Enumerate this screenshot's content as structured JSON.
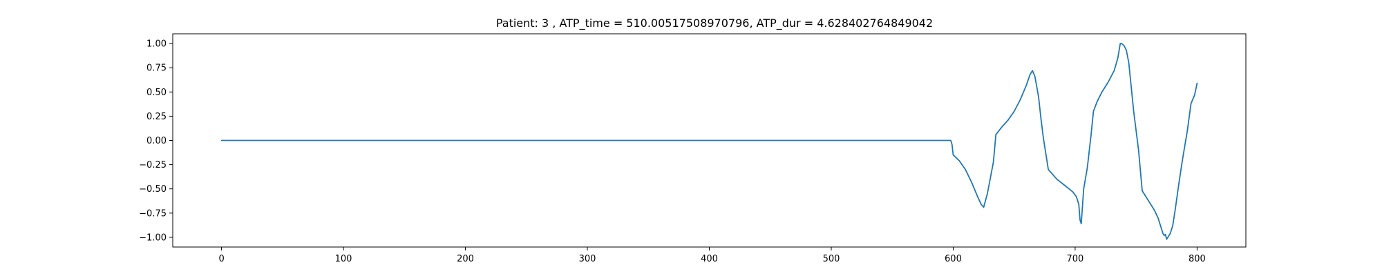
{
  "chart_data": {
    "type": "line",
    "title": "Patient: 3 , ATP_time = 510.00517508970796, ATP_dur = 4.628402764849042",
    "xlabel": "",
    "ylabel": "",
    "xlim": [
      -40,
      840
    ],
    "ylim": [
      -1.1,
      1.1
    ],
    "xticks": [
      0,
      100,
      200,
      300,
      400,
      500,
      600,
      700,
      800
    ],
    "yticks": [
      -1.0,
      -0.75,
      -0.5,
      -0.25,
      0.0,
      0.25,
      0.5,
      0.75,
      1.0
    ],
    "ytick_labels": [
      "−1.00",
      "−0.75",
      "−0.50",
      "−0.25",
      "0.00",
      "0.25",
      "0.50",
      "0.75",
      "1.00"
    ],
    "grid": false,
    "series": [
      {
        "color": "#1f77b4",
        "x": [
          0,
          100,
          200,
          300,
          400,
          500,
          598,
          599,
          600,
          605,
          610,
          615,
          620,
          623,
          625,
          628,
          630,
          633,
          635,
          640,
          645,
          650,
          655,
          660,
          663,
          665,
          667,
          670,
          672,
          674,
          678,
          685,
          692,
          698,
          701,
          703,
          704,
          705,
          707,
          710,
          713,
          715,
          718,
          722,
          727,
          732,
          735,
          737,
          738,
          740,
          742,
          744,
          746,
          748,
          752,
          755,
          760,
          765,
          768,
          770,
          772,
          773,
          774,
          775,
          776,
          778,
          780,
          782,
          785,
          788,
          790,
          792,
          795,
          798,
          800
        ],
        "y": [
          0,
          0,
          0,
          0,
          0,
          0,
          0,
          -0.04,
          -0.15,
          -0.21,
          -0.3,
          -0.43,
          -0.58,
          -0.66,
          -0.69,
          -0.55,
          -0.42,
          -0.22,
          0.06,
          0.14,
          0.21,
          0.3,
          0.42,
          0.57,
          0.68,
          0.72,
          0.66,
          0.45,
          0.22,
          0.02,
          -0.3,
          -0.4,
          -0.47,
          -0.53,
          -0.58,
          -0.66,
          -0.82,
          -0.86,
          -0.5,
          -0.28,
          0.05,
          0.3,
          0.4,
          0.5,
          0.6,
          0.72,
          0.85,
          1.0,
          1.0,
          0.98,
          0.93,
          0.8,
          0.55,
          0.3,
          -0.1,
          -0.52,
          -0.62,
          -0.72,
          -0.8,
          -0.88,
          -0.96,
          -0.98,
          -0.97,
          -1.02,
          -1.0,
          -0.96,
          -0.88,
          -0.72,
          -0.45,
          -0.2,
          -0.05,
          0.1,
          0.38,
          0.47,
          0.59
        ]
      }
    ]
  }
}
